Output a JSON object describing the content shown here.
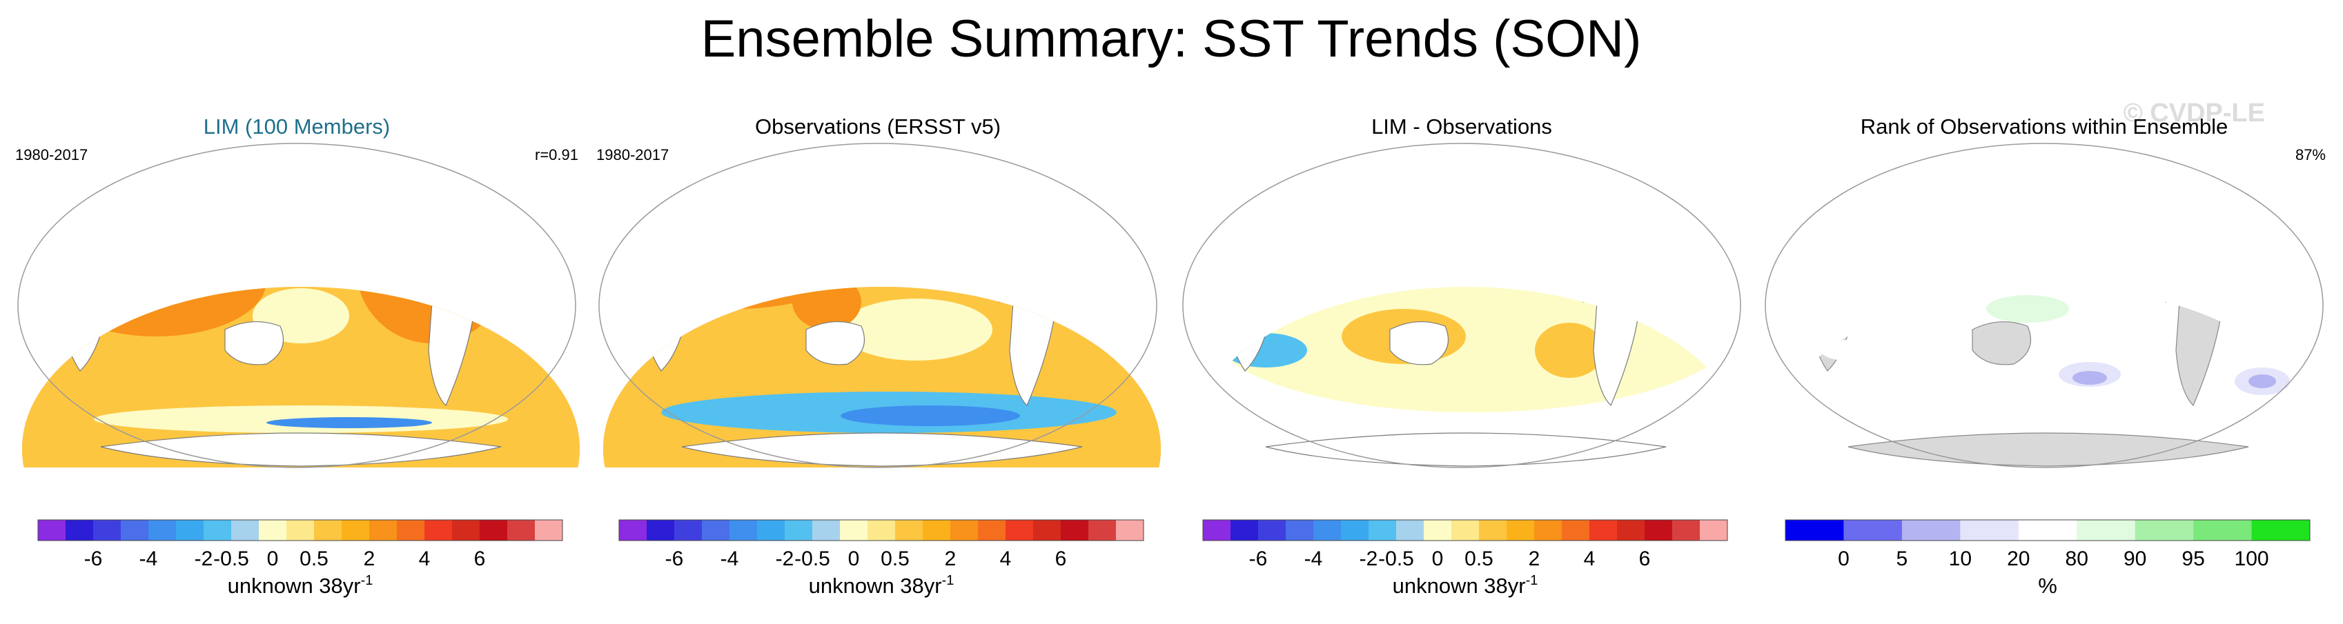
{
  "figure": {
    "title": "Ensemble Summary: SST Trends (SON)",
    "watermark": "© CVDP-LE"
  },
  "chart_data": [
    {
      "type": "heatmap",
      "panel": "lim",
      "title": "LIM (100 Members)",
      "title_color": "#1f6f8b",
      "period": "1980-2017",
      "stat": "r=0.91",
      "colorbar": {
        "ticks": [
          "-6",
          "-4",
          "-2",
          "-0.5",
          "0",
          "0.5",
          "2",
          "4",
          "6"
        ],
        "label": "unknown 38yr",
        "label_exp": "-1",
        "colors": [
          "#8b2be2",
          "#2b1ed6",
          "#3f3fe0",
          "#4a6fe8",
          "#3f8fee",
          "#3aa8ef",
          "#53c0f0",
          "#a6d2ee",
          "#fdfcc7",
          "#fde98c",
          "#fdc641",
          "#fbb21a",
          "#f8921a",
          "#f56e1e",
          "#ee3b22",
          "#d42b1c",
          "#c4101a",
          "#d84040",
          "#f9a8a8"
        ]
      },
      "field_levels": [
        -2,
        0,
        0.5,
        2
      ]
    },
    {
      "type": "heatmap",
      "panel": "obs",
      "title": "Observations (ERSST v5)",
      "title_color": "#000000",
      "period": "1980-2017",
      "stat": "",
      "colorbar": {
        "ticks": [
          "-6",
          "-4",
          "-2",
          "-0.5",
          "0",
          "0.5",
          "2",
          "4",
          "6"
        ],
        "label": "unknown 38yr",
        "label_exp": "-1",
        "colors": [
          "#8b2be2",
          "#2b1ed6",
          "#3f3fe0",
          "#4a6fe8",
          "#3f8fee",
          "#3aa8ef",
          "#53c0f0",
          "#a6d2ee",
          "#fdfcc7",
          "#fde98c",
          "#fdc641",
          "#fbb21a",
          "#f8921a",
          "#f56e1e",
          "#ee3b22",
          "#d42b1c",
          "#c4101a",
          "#d84040",
          "#f9a8a8"
        ]
      },
      "field_levels": [
        -2,
        -0.5,
        0,
        0.5,
        2,
        4
      ]
    },
    {
      "type": "heatmap",
      "panel": "diff",
      "title": "LIM - Observations",
      "title_color": "#000000",
      "period": "",
      "stat": "",
      "colorbar": {
        "ticks": [
          "-6",
          "-4",
          "-2",
          "-0.5",
          "0",
          "0.5",
          "2",
          "4",
          "6"
        ],
        "label": "unknown 38yr",
        "label_exp": "-1",
        "colors": [
          "#8b2be2",
          "#2b1ed6",
          "#3f3fe0",
          "#4a6fe8",
          "#3f8fee",
          "#3aa8ef",
          "#53c0f0",
          "#a6d2ee",
          "#fdfcc7",
          "#fde98c",
          "#fdc641",
          "#fbb21a",
          "#f8921a",
          "#f56e1e",
          "#ee3b22",
          "#d42b1c",
          "#c4101a",
          "#d84040",
          "#f9a8a8"
        ]
      },
      "field_levels": [
        -0.5,
        0,
        0.5
      ]
    },
    {
      "type": "heatmap",
      "panel": "rank",
      "title": "Rank of Observations within Ensemble",
      "title_color": "#000000",
      "period": "",
      "stat": "87%",
      "colorbar": {
        "ticks": [
          "0",
          "5",
          "10",
          "20",
          "80",
          "90",
          "95",
          "100"
        ],
        "label": "%",
        "label_exp": "",
        "colors": [
          "#0000f0",
          "#6b6bf0",
          "#b4b4f2",
          "#e4e4fb",
          "#ffffff",
          "#e0fbe0",
          "#a8f0a8",
          "#7be87b",
          "#1ee31e"
        ]
      },
      "field_levels": [
        5,
        10,
        20,
        80,
        90,
        95
      ]
    }
  ]
}
